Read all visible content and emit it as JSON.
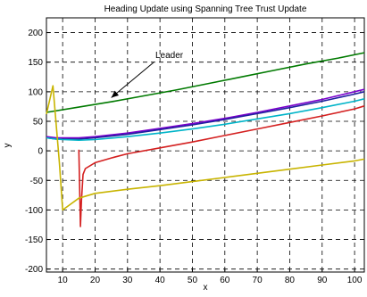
{
  "chart_data": {
    "type": "line",
    "title": "Heading Update using Spanning Tree Trust Update",
    "xlabel": "x",
    "ylabel": "y",
    "xlim": [
      5,
      103
    ],
    "ylim": [
      -205,
      225
    ],
    "xticks": [
      10,
      20,
      30,
      40,
      50,
      60,
      70,
      80,
      90,
      100
    ],
    "yticks": [
      -200,
      -150,
      -100,
      -50,
      0,
      50,
      100,
      150,
      200
    ],
    "grid": true,
    "annotation": {
      "text": "Leader",
      "arrow_to": [
        25,
        90
      ]
    },
    "series": [
      {
        "color": "#007a00",
        "x": [
          5,
          15,
          25,
          35,
          45,
          55,
          65,
          75,
          85,
          95,
          103
        ],
        "y": [
          65,
          74,
          83,
          93,
          103,
          114,
          125,
          136,
          147,
          157,
          166
        ]
      },
      {
        "color": "#7a00cc",
        "x": [
          5,
          8,
          10,
          15,
          20,
          30,
          40,
          50,
          60,
          70,
          80,
          90,
          100,
          103
        ],
        "y": [
          24,
          22,
          22,
          22,
          24,
          30,
          38,
          46,
          55,
          65,
          76,
          87,
          100,
          104
        ]
      },
      {
        "color": "#1f1f9e",
        "x": [
          5,
          8,
          10,
          15,
          20,
          30,
          40,
          50,
          60,
          70,
          80,
          90,
          100,
          103
        ],
        "y": [
          22,
          20,
          20,
          20,
          22,
          28,
          36,
          44,
          53,
          63,
          73,
          84,
          96,
          100
        ]
      },
      {
        "color": "#00b4c8",
        "x": [
          5,
          8,
          10,
          15,
          20,
          30,
          40,
          50,
          60,
          70,
          80,
          90,
          100,
          103
        ],
        "y": [
          22,
          20,
          19,
          18,
          19,
          24,
          30,
          37,
          45,
          54,
          63,
          73,
          84,
          88
        ]
      },
      {
        "color": "#d42020",
        "x": [
          15,
          15.5,
          15.8,
          16.3,
          17,
          20,
          25,
          30,
          40,
          50,
          60,
          70,
          80,
          90,
          100,
          103
        ],
        "y": [
          2,
          -128,
          -85,
          -40,
          -30,
          -20,
          -12,
          -5,
          5,
          15,
          26,
          37,
          48,
          59,
          71,
          76
        ]
      },
      {
        "color": "#c8b400",
        "x": [
          5,
          7,
          9,
          10,
          12,
          15,
          20,
          30,
          40,
          50,
          60,
          70,
          80,
          90,
          100,
          103
        ],
        "y": [
          62,
          110,
          -20,
          -100,
          -92,
          -80,
          -72,
          -65,
          -59,
          -52,
          -45,
          -38,
          -31,
          -24,
          -17,
          -14
        ]
      }
    ]
  }
}
